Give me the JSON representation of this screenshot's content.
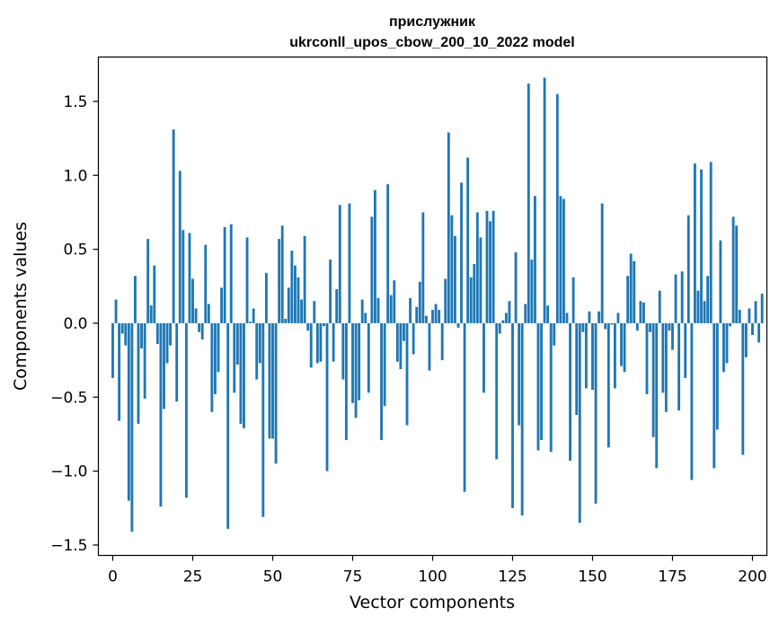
{
  "chart_data": {
    "type": "bar",
    "title": "прислужник",
    "subtitle": "ukrconll_upos_cbow_200_10_2022 model",
    "xlabel": "Vector components",
    "ylabel": "Components values",
    "xlim": [
      -4.5,
      204.5
    ],
    "ylim": [
      -1.57,
      1.8
    ],
    "xticks": [
      0,
      25,
      50,
      75,
      100,
      125,
      150,
      175,
      200
    ],
    "yticks": [
      -1.5,
      -1.0,
      -0.5,
      0.0,
      0.5,
      1.0,
      1.5
    ],
    "ytick_labels": [
      "−1.5",
      "−1.0",
      "−0.5",
      "0.0",
      "0.5",
      "1.0",
      "1.5"
    ],
    "bar_color": "#1f77b4",
    "grid": false,
    "values": [
      -0.37,
      0.16,
      -0.66,
      -0.07,
      -0.15,
      -1.2,
      -1.41,
      0.32,
      -0.68,
      -0.17,
      -0.51,
      0.57,
      0.12,
      0.39,
      -0.14,
      -1.24,
      -0.58,
      -0.27,
      -0.15,
      1.31,
      -0.53,
      1.03,
      0.63,
      -1.18,
      0.61,
      0.3,
      0.1,
      -0.06,
      -0.11,
      0.53,
      0.13,
      -0.6,
      -0.48,
      -0.33,
      0.24,
      0.65,
      -1.39,
      0.67,
      -0.47,
      -0.28,
      -0.68,
      -0.71,
      0.58,
      0.01,
      0.1,
      -0.38,
      -0.27,
      -1.31,
      0.34,
      -0.78,
      -0.78,
      -0.95,
      0.57,
      0.66,
      0.03,
      0.24,
      0.49,
      0.39,
      0.31,
      0.16,
      0.59,
      -0.05,
      -0.3,
      0.15,
      -0.27,
      -0.26,
      -0.02,
      -1.0,
      0.43,
      -0.26,
      0.23,
      0.8,
      -0.38,
      -0.79,
      0.81,
      -0.54,
      -0.64,
      -0.52,
      0.16,
      0.07,
      -0.47,
      0.72,
      0.9,
      0.17,
      -0.79,
      -0.56,
      0.94,
      0.19,
      0.29,
      -0.26,
      -0.31,
      -0.12,
      -0.69,
      0.17,
      -0.21,
      0.11,
      0.28,
      0.75,
      0.05,
      -0.32,
      0.09,
      0.13,
      0.09,
      -0.25,
      0.3,
      1.29,
      0.73,
      0.59,
      -0.03,
      0.95,
      -1.14,
      1.12,
      0.31,
      0.4,
      0.75,
      0.58,
      -0.47,
      0.76,
      0.69,
      0.76,
      -0.92,
      -0.07,
      0.02,
      0.07,
      0.15,
      -1.25,
      0.48,
      -0.69,
      -1.3,
      0.13,
      1.62,
      0.43,
      0.86,
      -0.86,
      -0.79,
      1.66,
      0.12,
      -0.87,
      -0.15,
      1.55,
      0.86,
      0.84,
      0.07,
      -0.93,
      0.31,
      -0.62,
      -1.35,
      -0.06,
      -0.44,
      0.08,
      -0.45,
      -1.22,
      0.08,
      0.81,
      -0.04,
      -0.84,
      -0.01,
      -0.44,
      0.07,
      -0.29,
      -0.33,
      0.32,
      0.47,
      0.42,
      -0.05,
      0.15,
      0.14,
      -0.48,
      -0.06,
      -0.77,
      -0.98,
      0.22,
      -0.47,
      -0.6,
      -0.05,
      -0.18,
      0.33,
      -0.59,
      0.35,
      -0.37,
      0.73,
      -1.06,
      1.08,
      0.22,
      1.04,
      0.15,
      0.32,
      1.09,
      -0.98,
      -0.72,
      0.56,
      -0.33,
      -0.27,
      -0.02,
      0.72,
      0.66,
      0.09,
      -0.89,
      -0.23,
      0.1,
      -0.08,
      0.15,
      -0.13,
      0.2
    ]
  }
}
